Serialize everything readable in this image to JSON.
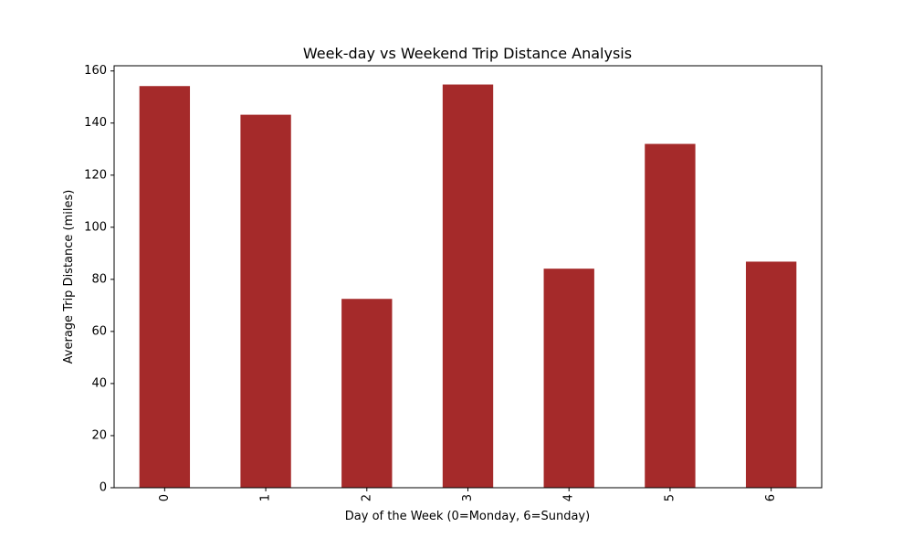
{
  "chart_data": {
    "type": "bar",
    "title": "Week-day vs Weekend Trip Distance Analysis",
    "xlabel": "Day of the Week (0=Monday, 6=Sunday)",
    "ylabel": "Average Trip Distance (miles)",
    "categories": [
      "0",
      "1",
      "2",
      "3",
      "4",
      "5",
      "6"
    ],
    "values": [
      154.2,
      143.2,
      72.5,
      154.8,
      84.1,
      132.0,
      86.8
    ],
    "ylim": [
      0,
      162
    ],
    "yticks": [
      0,
      20,
      40,
      60,
      80,
      100,
      120,
      140,
      160
    ],
    "xtick_rotation": "vertical",
    "grid": false,
    "legend": "none",
    "bar_color": "#a52a2a"
  }
}
